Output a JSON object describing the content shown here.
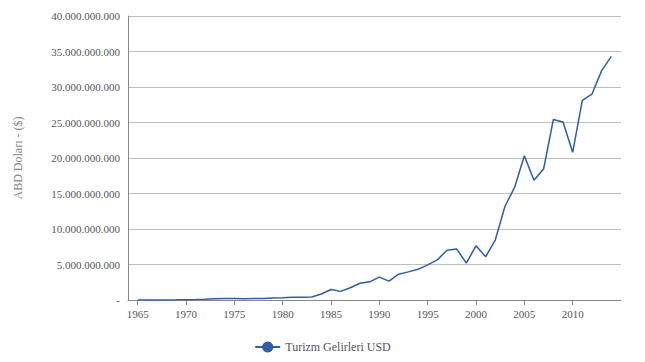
{
  "chart_data": {
    "type": "line",
    "ylabel": "ABD Doları - ($)",
    "x": [
      1965,
      1966,
      1967,
      1968,
      1969,
      1970,
      1971,
      1972,
      1973,
      1974,
      1975,
      1976,
      1977,
      1978,
      1979,
      1980,
      1981,
      1982,
      1983,
      1984,
      1985,
      1986,
      1987,
      1988,
      1989,
      1990,
      1991,
      1992,
      1993,
      1994,
      1995,
      1996,
      1997,
      1998,
      1999,
      2000,
      2001,
      2002,
      2003,
      2004,
      2005,
      2006,
      2007,
      2008,
      2009,
      2010,
      2011,
      2012,
      2013,
      2014
    ],
    "series": [
      {
        "name": "Turizm Gelirleri USD",
        "color": "#2e5fa3",
        "values": [
          13000000,
          14000000,
          15000000,
          17000000,
          19000000,
          48000000,
          62000000,
          103000000,
          171000000,
          210000000,
          200000000,
          180000000,
          200000000,
          220000000,
          280000000,
          327000000,
          381000000,
          370000000,
          411000000,
          840000000,
          1482000000,
          1215000000,
          1721000000,
          2355000000,
          2557000000,
          3225000000,
          2654000000,
          3639000000,
          3959000000,
          4321000000,
          4957000000,
          5650000000,
          7008000000,
          7177000000,
          5203000000,
          7636000000,
          6087000000,
          8481000000,
          13203000000,
          15888000000,
          20322000000,
          16853000000,
          18487000000,
          25416000000,
          25064000000,
          20807000000,
          28121000000,
          29007000000,
          32308000000,
          34305000000
        ]
      }
    ],
    "xlim": [
      1964,
      2015
    ],
    "xticks": [
      1965,
      1970,
      1975,
      1980,
      1985,
      1990,
      1995,
      2000,
      2005,
      2010
    ],
    "ylim": [
      0,
      40000000000
    ],
    "yticks": [
      {
        "value": 0,
        "label": "-"
      },
      {
        "value": 5000000000,
        "label": "5.000.000.000"
      },
      {
        "value": 10000000000,
        "label": "10.000.000.000"
      },
      {
        "value": 15000000000,
        "label": "15.000.000.000"
      },
      {
        "value": 20000000000,
        "label": "20.000.000.000"
      },
      {
        "value": 25000000000,
        "label": "25.000.000.000"
      },
      {
        "value": 30000000000,
        "label": "30.000.000.000"
      },
      {
        "value": 35000000000,
        "label": "35.000.000.000"
      },
      {
        "value": 40000000000,
        "label": "40.000.000.000"
      }
    ],
    "grid": true,
    "legend": "bottom"
  }
}
